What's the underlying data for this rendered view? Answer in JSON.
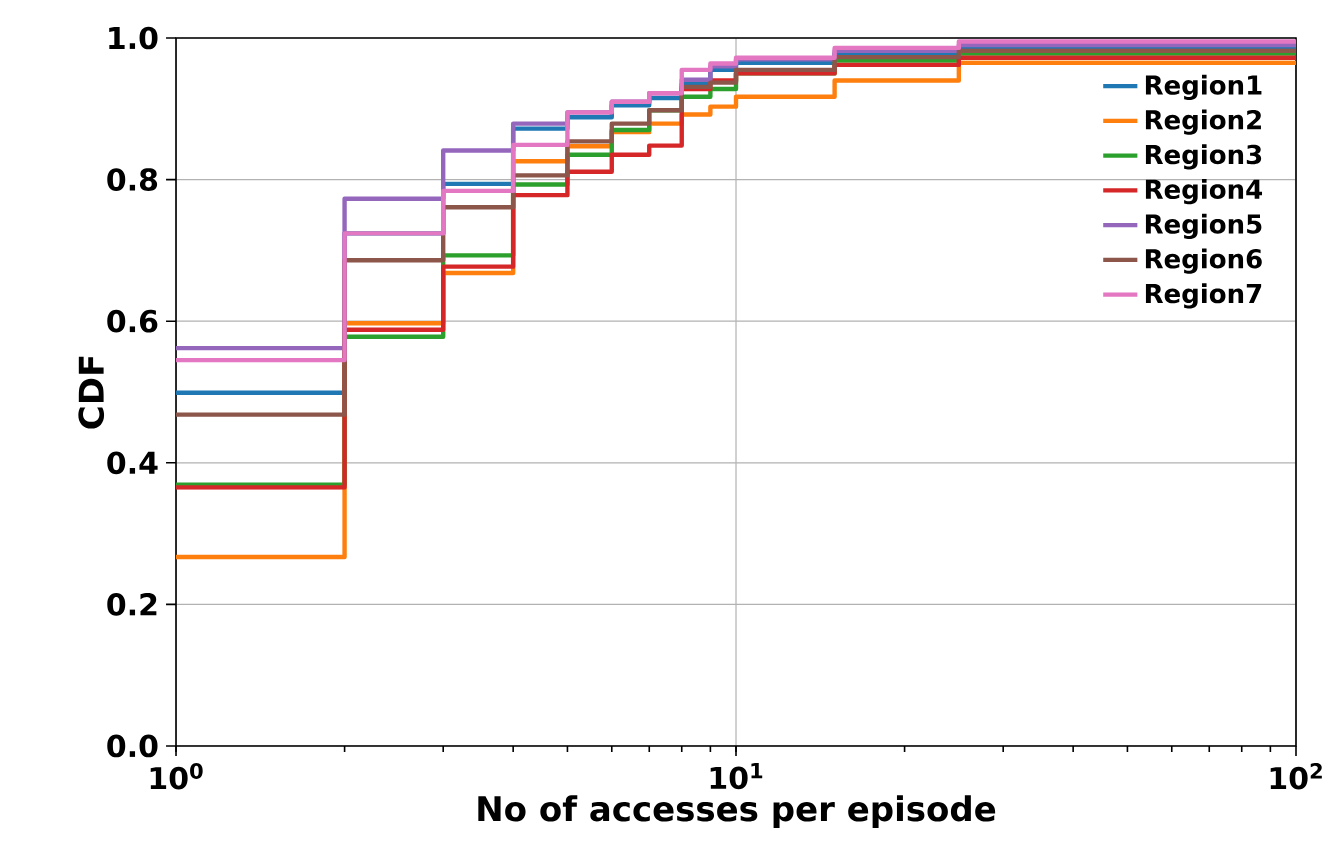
{
  "chart_data": {
    "type": "step",
    "xlabel": "No of accesses per episode",
    "ylabel": "CDF",
    "log": "x",
    "grid": true,
    "legend": "top right",
    "x": [
      1,
      2,
      3,
      4,
      5,
      6,
      7,
      8,
      9,
      10,
      15,
      25,
      100
    ],
    "xlim": [
      1,
      100
    ],
    "ylim": [
      0,
      1
    ],
    "xticks": [
      {
        "value": 1,
        "label": "10$^{0}$"
      },
      {
        "value": 10,
        "label": "10$^{1}$"
      },
      {
        "value": 100,
        "label": "10$^{2}$"
      }
    ],
    "yticks": [
      {
        "value": 0,
        "label": "0.0"
      },
      {
        "value": 0.2,
        "label": "0.2"
      },
      {
        "value": 0.4,
        "label": "0.4"
      },
      {
        "value": 0.6,
        "label": "0.6"
      },
      {
        "value": 0.8,
        "label": "0.8"
      },
      {
        "value": 1,
        "label": "1.0"
      }
    ],
    "series": [
      {
        "name": "Region1",
        "color": "#1f77b4",
        "values": [
          0.499,
          0.724,
          0.794,
          0.872,
          0.888,
          0.905,
          0.915,
          0.935,
          0.955,
          0.965,
          0.978,
          0.986,
          0.986
        ]
      },
      {
        "name": "Region2",
        "color": "#ff7f0e",
        "values": [
          0.267,
          0.597,
          0.668,
          0.826,
          0.847,
          0.867,
          0.879,
          0.892,
          0.903,
          0.917,
          0.94,
          0.965,
          0.965
        ]
      },
      {
        "name": "Region3",
        "color": "#2ca02c",
        "values": [
          0.369,
          0.578,
          0.693,
          0.793,
          0.835,
          0.87,
          0.898,
          0.917,
          0.928,
          0.95,
          0.968,
          0.978,
          0.978
        ]
      },
      {
        "name": "Region4",
        "color": "#d62728",
        "values": [
          0.365,
          0.588,
          0.677,
          0.778,
          0.811,
          0.835,
          0.848,
          0.928,
          0.94,
          0.95,
          0.962,
          0.972,
          0.972
        ]
      },
      {
        "name": "Region5",
        "color": "#9467bd",
        "values": [
          0.562,
          0.773,
          0.841,
          0.879,
          0.895,
          0.91,
          0.922,
          0.941,
          0.96,
          0.97,
          0.982,
          0.99,
          0.99
        ]
      },
      {
        "name": "Region6",
        "color": "#8c564b",
        "values": [
          0.468,
          0.686,
          0.761,
          0.806,
          0.854,
          0.879,
          0.898,
          0.931,
          0.937,
          0.955,
          0.973,
          0.982,
          0.982
        ]
      },
      {
        "name": "Region7",
        "color": "#e377c2",
        "values": [
          0.545,
          0.724,
          0.784,
          0.849,
          0.895,
          0.91,
          0.922,
          0.955,
          0.964,
          0.972,
          0.986,
          0.995,
          0.995
        ]
      }
    ]
  }
}
